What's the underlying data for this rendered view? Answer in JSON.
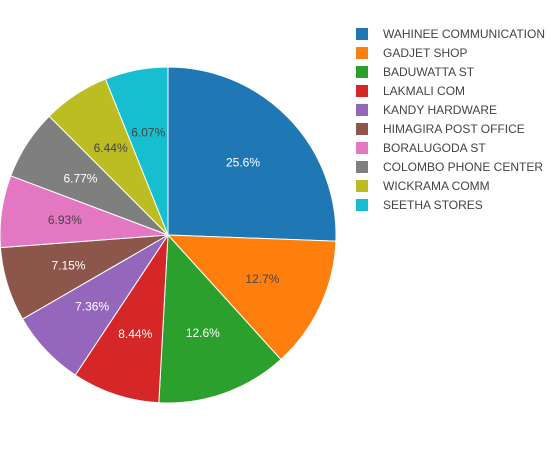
{
  "chart_data": {
    "type": "pie",
    "labels": [
      "WAHINEE COMMUNICATION",
      "GADJET SHOP",
      "BADUWATTA ST",
      "LAKMALI COM",
      "KANDY HARDWARE",
      "HIMAGIRA POST OFFICE",
      "BORALUGODA ST",
      "COLOMBO PHONE CENTER",
      "WICKRAMA COMM",
      "SEETHA STORES"
    ],
    "values": [
      25.6,
      12.7,
      12.6,
      8.44,
      7.36,
      7.15,
      6.93,
      6.77,
      6.44,
      6.07
    ],
    "text_labels": [
      "25.6%",
      "12.7%",
      "12.6%",
      "8.44%",
      "7.36%",
      "7.15%",
      "6.93%",
      "6.77%",
      "6.44%",
      "6.07%"
    ],
    "colors": [
      "#1f77b4",
      "#ff7f0e",
      "#2ca02c",
      "#d62728",
      "#9467bd",
      "#8c564b",
      "#e377c2",
      "#7f7f7f",
      "#bcbd22",
      "#17becf"
    ],
    "label_colors": [
      "#ffffff",
      "#444444",
      "#ffffff",
      "#ffffff",
      "#ffffff",
      "#ffffff",
      "#444444",
      "#ffffff",
      "#444444",
      "#444444"
    ],
    "direction": "clockwise",
    "start": "top",
    "legend_position": "top-right"
  }
}
